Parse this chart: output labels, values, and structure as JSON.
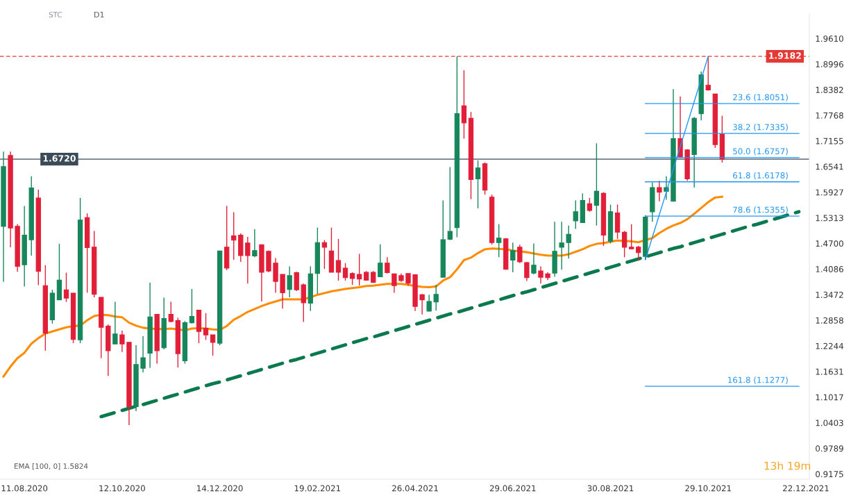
{
  "chart_data": {
    "type": "candlestick",
    "categories": [
      null,
      null,
      null,
      "11.08.2020",
      null,
      null,
      null,
      null,
      null,
      null,
      null,
      null,
      null,
      null,
      null,
      null,
      null,
      "12.10.2020",
      null,
      null,
      null,
      null,
      null,
      null,
      null,
      null,
      null,
      null,
      null,
      null,
      null,
      "14.12.2020",
      null,
      null,
      null,
      null,
      null,
      null,
      null,
      null,
      null,
      null,
      null,
      null,
      null,
      "19.02.2021",
      null,
      null,
      null,
      null,
      null,
      null,
      null,
      null,
      null,
      null,
      null,
      null,
      null,
      "26.04.2021",
      null,
      null,
      null,
      null,
      null,
      null,
      null,
      null,
      null,
      null,
      null,
      null,
      null,
      "29.06.2021",
      null,
      null,
      null,
      null,
      null,
      null,
      null,
      null,
      null,
      null,
      null,
      null,
      null,
      "30.08.2021",
      null,
      null,
      null,
      null,
      null,
      null,
      null,
      null,
      null,
      null,
      null,
      null,
      null,
      "29.10.2021",
      null,
      null,
      null,
      null,
      null,
      null,
      null,
      null,
      null,
      null,
      null,
      null,
      null,
      "22.12.2021"
    ],
    "colors": [
      "#17865b",
      "#e21f38",
      "#e21f38",
      "#17865b",
      "#17865b",
      "#e21f38",
      "#e21f38",
      "#17865b",
      "#17865b",
      "#e21f38",
      "#e21f38",
      "#17865b",
      "#e21f38",
      "#e21f38",
      "#e21f38",
      "#e21f38",
      "#17865b",
      "#e21f38",
      "#e21f38",
      "#17865b",
      "#17865b",
      "#17865b",
      "#e21f38",
      "#17865b",
      "#e21f38",
      "#e21f38",
      "#17865b",
      "#17865b",
      "#e21f38",
      "#e21f38",
      "#e21f38",
      "#17865b",
      "#e21f38",
      "#e21f38",
      "#e21f38",
      "#e21f38",
      "#17865b",
      "#e21f38",
      "#e21f38",
      "#e21f38",
      "#e21f38",
      "#17865b",
      "#e21f38",
      "#e21f38",
      "#17865b",
      "#17865b",
      "#e21f38",
      "#e21f38",
      "#e21f38",
      "#e21f38",
      "#e21f38",
      "#e21f38",
      "#e21f38",
      "#e21f38",
      "#17865b",
      "#e21f38",
      "#e21f38",
      "#e21f38",
      "#e21f38",
      "#e21f38",
      "#e21f38",
      "#17865b",
      "#17865b",
      "#17865b",
      "#17865b",
      "#17865b",
      "#e21f38",
      "#e21f38",
      "#17865b",
      "#e21f38",
      "#e21f38",
      "#17865b",
      "#e21f38",
      "#17865b",
      "#e21f38",
      "#e21f38",
      "#17865b",
      "#e21f38",
      "#e21f38",
      "#17865b",
      "#17865b",
      "#17865b",
      "#17865b",
      "#17865b",
      "#e21f38",
      "#17865b",
      "#e21f38",
      "#17865b",
      "#e21f38",
      "#e21f38",
      "#e21f38",
      "#e21f38",
      "#17865b",
      "#17865b",
      "#e21f38",
      "#17865b",
      "#17865b",
      "#e21f38",
      "#e21f38",
      "#17865b",
      "#17865b",
      "#e21f38",
      "#e21f38",
      "#e21f38",
      null,
      null,
      null,
      null,
      null,
      null,
      null,
      null,
      null,
      null,
      null,
      null
    ],
    "ohlc": [
      [
        1.511,
        1.69,
        1.378,
        1.654
      ],
      [
        1.681,
        1.69,
        1.461,
        1.507
      ],
      [
        1.511,
        1.516,
        1.402,
        1.415
      ],
      [
        1.419,
        1.56,
        1.367,
        1.49
      ],
      [
        1.479,
        1.631,
        1.441,
        1.603
      ],
      [
        1.579,
        1.599,
        1.37,
        1.403
      ],
      [
        1.369,
        1.418,
        1.213,
        1.255
      ],
      [
        1.287,
        1.359,
        1.278,
        1.351
      ],
      [
        1.335,
        1.469,
        1.335,
        1.382
      ],
      [
        1.359,
        1.4,
        1.33,
        1.339
      ],
      [
        1.351,
        1.351,
        1.231,
        1.24
      ],
      [
        1.239,
        1.579,
        1.231,
        1.526
      ],
      [
        1.532,
        1.542,
        1.352,
        1.46
      ],
      [
        1.461,
        1.5,
        1.341,
        1.348
      ],
      [
        1.341,
        1.341,
        1.195,
        1.269
      ],
      [
        1.272,
        1.276,
        1.153,
        1.213
      ],
      [
        1.229,
        1.33,
        1.229,
        1.253
      ],
      [
        1.251,
        1.261,
        1.21,
        1.229
      ],
      [
        1.233,
        1.233,
        1.035,
        1.079
      ],
      [
        1.079,
        1.226,
        1.068,
        1.18
      ],
      [
        1.171,
        1.248,
        1.161,
        1.196
      ],
      [
        1.207,
        1.376,
        1.172,
        1.294
      ],
      [
        1.3,
        1.3,
        1.182,
        1.213
      ],
      [
        1.22,
        1.34,
        1.216,
        1.29
      ],
      [
        1.3,
        1.33,
        1.281,
        1.283
      ],
      [
        1.285,
        1.292,
        1.173,
        1.206
      ],
      [
        1.189,
        1.284,
        1.182,
        1.28
      ],
      [
        1.28,
        1.361,
        1.278,
        1.295
      ],
      [
        1.31,
        1.31,
        1.231,
        1.259
      ],
      [
        1.267,
        1.303,
        1.239,
        1.251
      ],
      [
        1.251,
        1.251,
        1.201,
        1.233
      ],
      [
        1.231,
        1.452,
        1.226,
        1.452
      ],
      [
        1.461,
        1.56,
        1.406,
        1.411
      ],
      [
        1.488,
        1.545,
        1.431,
        1.478
      ],
      [
        1.49,
        1.494,
        1.426,
        1.441
      ],
      [
        1.471,
        1.486,
        1.374,
        1.441
      ],
      [
        1.44,
        1.504,
        1.437,
        1.453
      ],
      [
        1.467,
        1.467,
        1.331,
        1.401
      ],
      [
        1.451,
        1.453,
        1.401,
        1.404
      ],
      [
        1.423,
        1.435,
        1.352,
        1.379
      ],
      [
        1.396,
        1.396,
        1.314,
        1.352
      ],
      [
        1.36,
        1.415,
        1.341,
        1.393
      ],
      [
        1.4,
        1.402,
        1.356,
        1.359
      ],
      [
        1.371,
        1.374,
        1.282,
        1.328
      ],
      [
        1.327,
        1.415,
        1.308,
        1.397
      ],
      [
        1.398,
        1.508,
        1.349,
        1.472
      ],
      [
        1.472,
        1.478,
        1.409,
        1.461
      ],
      [
        1.452,
        1.508,
        1.401,
        1.401
      ],
      [
        1.429,
        1.481,
        1.381,
        1.401
      ],
      [
        1.411,
        1.423,
        1.381,
        1.388
      ],
      [
        1.398,
        1.401,
        1.371,
        1.386
      ],
      [
        1.396,
        1.445,
        1.369,
        1.385
      ],
      [
        1.401,
        1.404,
        1.381,
        1.382
      ],
      [
        1.401,
        1.404,
        1.375,
        1.377
      ],
      [
        1.39,
        1.468,
        1.39,
        1.423
      ],
      [
        1.423,
        1.437,
        1.398,
        1.4
      ],
      [
        1.397,
        1.398,
        1.352,
        1.369
      ],
      [
        1.393,
        1.398,
        1.378,
        1.381
      ],
      [
        1.398,
        1.398,
        1.369,
        1.375
      ],
      [
        1.395,
        1.396,
        1.308,
        1.319
      ],
      [
        1.347,
        1.349,
        1.3,
        1.335
      ],
      [
        1.308,
        1.347,
        1.307,
        1.331
      ],
      [
        1.33,
        1.371,
        1.309,
        1.348
      ],
      [
        1.389,
        1.573,
        1.389,
        1.479
      ],
      [
        1.48,
        1.653,
        1.478,
        1.499
      ],
      [
        1.508,
        1.918,
        1.485,
        1.781
      ],
      [
        1.8,
        1.885,
        1.721,
        1.759
      ],
      [
        1.77,
        1.785,
        1.576,
        1.623
      ],
      [
        1.625,
        1.669,
        1.554,
        1.651
      ],
      [
        1.661,
        1.664,
        1.587,
        1.598
      ],
      [
        1.581,
        1.587,
        1.467,
        1.472
      ],
      [
        1.472,
        1.516,
        1.437,
        1.483
      ],
      [
        1.481,
        1.483,
        1.407,
        1.408
      ],
      [
        1.43,
        1.472,
        1.401,
        1.453
      ],
      [
        1.461,
        1.467,
        1.423,
        1.426
      ],
      [
        1.424,
        1.426,
        1.38,
        1.388
      ],
      [
        1.399,
        1.47,
        1.396,
        1.418
      ],
      [
        1.404,
        1.415,
        1.374,
        1.389
      ],
      [
        1.397,
        1.401,
        1.382,
        1.388
      ],
      [
        1.399,
        1.522,
        1.39,
        1.451
      ],
      [
        1.461,
        1.522,
        1.407,
        1.471
      ],
      [
        1.472,
        1.513,
        1.434,
        1.492
      ],
      [
        1.524,
        1.573,
        1.505,
        1.546
      ],
      [
        1.52,
        1.59,
        1.519,
        1.573
      ],
      [
        1.565,
        1.579,
        1.546,
        1.549
      ],
      [
        1.561,
        1.71,
        1.513,
        1.595
      ],
      [
        1.59,
        1.593,
        1.464,
        1.49
      ],
      [
        1.475,
        1.563,
        1.47,
        1.546
      ],
      [
        1.543,
        1.563,
        1.481,
        1.497
      ],
      [
        1.497,
        1.5,
        1.437,
        1.461
      ],
      [
        1.461,
        1.516,
        1.456,
        1.457
      ],
      [
        1.461,
        1.464,
        1.429,
        1.448
      ],
      [
        1.439,
        1.538,
        1.431,
        1.533
      ],
      [
        1.546,
        1.616,
        1.522,
        1.604
      ],
      [
        1.604,
        1.62,
        1.571,
        1.593
      ],
      [
        1.595,
        1.631,
        1.575,
        1.604
      ],
      [
        1.571,
        1.84,
        1.571,
        1.721
      ],
      [
        1.721,
        1.822,
        1.675,
        1.677
      ],
      [
        1.694,
        1.696,
        1.62,
        1.625
      ],
      [
        1.683,
        1.773,
        1.604,
        1.77
      ],
      [
        1.781,
        1.882,
        1.765,
        1.874
      ],
      [
        1.849,
        1.918,
        1.836,
        1.838
      ],
      [
        1.828,
        1.828,
        1.699,
        1.707
      ],
      [
        1.732,
        1.776,
        1.664,
        1.672
      ],
      null,
      null,
      null,
      null,
      null,
      null,
      null,
      null,
      null,
      null,
      null,
      null
    ],
    "series": [
      {
        "type": "line",
        "color": "#ff8c00",
        "line_style": "solid",
        "values": [
          1.151,
          1.175,
          1.195,
          1.208,
          1.23,
          1.243,
          1.254,
          1.259,
          1.264,
          1.269,
          1.272,
          1.273,
          1.286,
          1.296,
          1.299,
          1.298,
          1.295,
          1.293,
          1.28,
          1.273,
          1.268,
          1.266,
          1.265,
          1.265,
          1.266,
          1.264,
          1.262,
          1.266,
          1.267,
          1.266,
          1.264,
          1.263,
          1.272,
          1.287,
          1.296,
          1.306,
          1.313,
          1.32,
          1.326,
          1.331,
          1.336,
          1.336,
          1.336,
          1.336,
          1.341,
          1.347,
          1.351,
          1.355,
          1.358,
          1.361,
          1.363,
          1.365,
          1.368,
          1.369,
          1.371,
          1.373,
          1.373,
          1.373,
          1.371,
          1.368,
          1.366,
          1.365,
          1.367,
          1.381,
          1.389,
          1.408,
          1.43,
          1.436,
          1.447,
          1.456,
          1.458,
          1.457,
          1.456,
          1.453,
          1.451,
          1.449,
          1.446,
          1.443,
          1.441,
          1.441,
          1.441,
          1.444,
          1.45,
          1.456,
          1.464,
          1.469,
          1.471,
          1.474,
          1.477,
          1.476,
          1.475,
          1.473,
          1.478,
          1.483,
          1.495,
          1.505,
          1.513,
          1.519,
          1.528,
          1.541,
          1.555,
          1.569,
          1.58,
          1.582,
          null,
          null,
          null,
          null,
          null,
          null,
          null,
          null,
          null,
          null,
          null,
          null
        ]
      },
      {
        "type": "line",
        "color": "#0a7a4e",
        "line_style": "dashed",
        "values": [
          null,
          null,
          null,
          null,
          null,
          null,
          null,
          null,
          null,
          null,
          null,
          null,
          null,
          null,
          1.055,
          1.06,
          1.065,
          1.07,
          1.075,
          1.08,
          1.084,
          1.089,
          1.094,
          1.099,
          1.104,
          1.109,
          1.114,
          1.119,
          1.124,
          1.129,
          1.134,
          1.138,
          1.143,
          1.148,
          1.153,
          1.158,
          1.163,
          1.168,
          1.173,
          1.178,
          1.183,
          1.188,
          1.192,
          1.197,
          1.202,
          1.207,
          1.212,
          1.217,
          1.222,
          1.227,
          1.232,
          1.237,
          1.242,
          1.246,
          1.251,
          1.256,
          1.261,
          1.266,
          1.271,
          1.276,
          1.281,
          1.286,
          1.291,
          1.296,
          1.301,
          1.305,
          1.31,
          1.315,
          1.32,
          1.325,
          1.33,
          1.335,
          1.34,
          1.345,
          1.35,
          1.354,
          1.359,
          1.364,
          1.369,
          1.374,
          1.379,
          1.384,
          1.389,
          1.394,
          1.399,
          1.404,
          1.408,
          1.413,
          1.418,
          1.423,
          1.428,
          1.433,
          1.438,
          1.443,
          1.448,
          1.453,
          1.458,
          1.462,
          1.467,
          1.472,
          1.477,
          1.482,
          1.487,
          1.492,
          1.497,
          1.502,
          1.507,
          1.512,
          1.516,
          1.521,
          1.526,
          1.531,
          1.536,
          1.541,
          1.546,
          null
        ]
      },
      {
        "type": "line",
        "color": "#2196f3",
        "line_style": "solid",
        "values": [
          null,
          null,
          null,
          null,
          null,
          null,
          null,
          null,
          null,
          null,
          null,
          null,
          null,
          null,
          null,
          null,
          null,
          null,
          null,
          null,
          null,
          null,
          null,
          null,
          null,
          null,
          null,
          null,
          null,
          null,
          null,
          null,
          null,
          null,
          null,
          null,
          null,
          null,
          null,
          null,
          null,
          null,
          null,
          null,
          null,
          null,
          null,
          null,
          null,
          null,
          null,
          null,
          null,
          null,
          null,
          null,
          null,
          null,
          null,
          null,
          null,
          null,
          null,
          null,
          null,
          null,
          null,
          null,
          null,
          null,
          null,
          null,
          null,
          null,
          null,
          null,
          null,
          null,
          null,
          null,
          null,
          null,
          null,
          null,
          null,
          null,
          null,
          null,
          null,
          null,
          null,
          null,
          1.431,
          1.485,
          1.539,
          1.593,
          1.648,
          1.702,
          1.756,
          1.81,
          1.864,
          1.918,
          null,
          null,
          null,
          null,
          null,
          null,
          null,
          null,
          null,
          null,
          null,
          null,
          null,
          null
        ]
      },
      {
        "type": "line",
        "name": "23.6 (1.8051)",
        "color": "#2196f3",
        "line_style": "solid",
        "values": [
          null,
          null,
          null,
          null,
          null,
          null,
          null,
          null,
          null,
          null,
          null,
          null,
          null,
          null,
          null,
          null,
          null,
          null,
          null,
          null,
          null,
          null,
          null,
          null,
          null,
          null,
          null,
          null,
          null,
          null,
          null,
          null,
          null,
          null,
          null,
          null,
          null,
          null,
          null,
          null,
          null,
          null,
          null,
          null,
          null,
          null,
          null,
          null,
          null,
          null,
          null,
          null,
          null,
          null,
          null,
          null,
          null,
          null,
          null,
          null,
          null,
          null,
          null,
          null,
          null,
          null,
          null,
          null,
          null,
          null,
          null,
          null,
          null,
          null,
          null,
          null,
          null,
          null,
          null,
          null,
          null,
          null,
          null,
          null,
          null,
          null,
          null,
          null,
          null,
          null,
          null,
          null,
          1.8051,
          1.8051,
          1.8051,
          1.8051,
          1.8051,
          1.8051,
          1.8051,
          1.8051,
          1.8051,
          1.8051,
          1.8051,
          1.8051,
          1.8051,
          1.8051,
          1.8051,
          1.8051,
          1.8051,
          1.8051,
          1.8051,
          1.8051,
          1.8051,
          1.8051,
          1.8051,
          null
        ]
      },
      {
        "type": "line",
        "name": "38.2 (1.7335)",
        "color": "#2196f3",
        "line_style": "solid",
        "values": [
          null,
          null,
          null,
          null,
          null,
          null,
          null,
          null,
          null,
          null,
          null,
          null,
          null,
          null,
          null,
          null,
          null,
          null,
          null,
          null,
          null,
          null,
          null,
          null,
          null,
          null,
          null,
          null,
          null,
          null,
          null,
          null,
          null,
          null,
          null,
          null,
          null,
          null,
          null,
          null,
          null,
          null,
          null,
          null,
          null,
          null,
          null,
          null,
          null,
          null,
          null,
          null,
          null,
          null,
          null,
          null,
          null,
          null,
          null,
          null,
          null,
          null,
          null,
          null,
          null,
          null,
          null,
          null,
          null,
          null,
          null,
          null,
          null,
          null,
          null,
          null,
          null,
          null,
          null,
          null,
          null,
          null,
          null,
          null,
          null,
          null,
          null,
          null,
          null,
          null,
          null,
          null,
          1.7335,
          1.7335,
          1.7335,
          1.7335,
          1.7335,
          1.7335,
          1.7335,
          1.7335,
          1.7335,
          1.7335,
          1.7335,
          1.7335,
          1.7335,
          1.7335,
          1.7335,
          1.7335,
          1.7335,
          1.7335,
          1.7335,
          1.7335,
          1.7335,
          1.7335,
          1.7335,
          null
        ]
      },
      {
        "type": "line",
        "name": "50.0 (1.6757)",
        "color": "#2196f3",
        "line_style": "solid",
        "values": [
          null,
          null,
          null,
          null,
          null,
          null,
          null,
          null,
          null,
          null,
          null,
          null,
          null,
          null,
          null,
          null,
          null,
          null,
          null,
          null,
          null,
          null,
          null,
          null,
          null,
          null,
          null,
          null,
          null,
          null,
          null,
          null,
          null,
          null,
          null,
          null,
          null,
          null,
          null,
          null,
          null,
          null,
          null,
          null,
          null,
          null,
          null,
          null,
          null,
          null,
          null,
          null,
          null,
          null,
          null,
          null,
          null,
          null,
          null,
          null,
          null,
          null,
          null,
          null,
          null,
          null,
          null,
          null,
          null,
          null,
          null,
          null,
          null,
          null,
          null,
          null,
          null,
          null,
          null,
          null,
          null,
          null,
          null,
          null,
          null,
          null,
          null,
          null,
          null,
          null,
          null,
          null,
          1.6757,
          1.6757,
          1.6757,
          1.6757,
          1.6757,
          1.6757,
          1.6757,
          1.6757,
          1.6757,
          1.6757,
          1.6757,
          1.6757,
          1.6757,
          1.6757,
          1.6757,
          1.6757,
          1.6757,
          1.6757,
          1.6757,
          1.6757,
          1.6757,
          1.6757,
          1.6757,
          null
        ]
      },
      {
        "type": "line",
        "name": "61.8 (1.6178)",
        "color": "#2196f3",
        "line_style": "solid",
        "values": [
          null,
          null,
          null,
          null,
          null,
          null,
          null,
          null,
          null,
          null,
          null,
          null,
          null,
          null,
          null,
          null,
          null,
          null,
          null,
          null,
          null,
          null,
          null,
          null,
          null,
          null,
          null,
          null,
          null,
          null,
          null,
          null,
          null,
          null,
          null,
          null,
          null,
          null,
          null,
          null,
          null,
          null,
          null,
          null,
          null,
          null,
          null,
          null,
          null,
          null,
          null,
          null,
          null,
          null,
          null,
          null,
          null,
          null,
          null,
          null,
          null,
          null,
          null,
          null,
          null,
          null,
          null,
          null,
          null,
          null,
          null,
          null,
          null,
          null,
          null,
          null,
          null,
          null,
          null,
          null,
          null,
          null,
          null,
          null,
          null,
          null,
          null,
          null,
          null,
          null,
          null,
          null,
          1.6178,
          1.6178,
          1.6178,
          1.6178,
          1.6178,
          1.6178,
          1.6178,
          1.6178,
          1.6178,
          1.6178,
          1.6178,
          1.6178,
          1.6178,
          1.6178,
          1.6178,
          1.6178,
          1.6178,
          1.6178,
          1.6178,
          1.6178,
          1.6178,
          1.6178,
          1.6178,
          null
        ]
      },
      {
        "type": "line",
        "name": "78.6 (1.5355)",
        "color": "#2196f3",
        "line_style": "solid",
        "values": [
          null,
          null,
          null,
          null,
          null,
          null,
          null,
          null,
          null,
          null,
          null,
          null,
          null,
          null,
          null,
          null,
          null,
          null,
          null,
          null,
          null,
          null,
          null,
          null,
          null,
          null,
          null,
          null,
          null,
          null,
          null,
          null,
          null,
          null,
          null,
          null,
          null,
          null,
          null,
          null,
          null,
          null,
          null,
          null,
          null,
          null,
          null,
          null,
          null,
          null,
          null,
          null,
          null,
          null,
          null,
          null,
          null,
          null,
          null,
          null,
          null,
          null,
          null,
          null,
          null,
          null,
          null,
          null,
          null,
          null,
          null,
          null,
          null,
          null,
          null,
          null,
          null,
          null,
          null,
          null,
          null,
          null,
          null,
          null,
          null,
          null,
          null,
          null,
          null,
          null,
          null,
          null,
          1.5355,
          1.5355,
          1.5355,
          1.5355,
          1.5355,
          1.5355,
          1.5355,
          1.5355,
          1.5355,
          1.5355,
          1.5355,
          1.5355,
          1.5355,
          1.5355,
          1.5355,
          1.5355,
          1.5355,
          1.5355,
          1.5355,
          1.5355,
          1.5355,
          1.5355,
          1.5355,
          null
        ]
      },
      {
        "type": "line",
        "name": "161.8 (1.1277)",
        "color": "#2196f3",
        "line_style": "solid",
        "values": [
          null,
          null,
          null,
          null,
          null,
          null,
          null,
          null,
          null,
          null,
          null,
          null,
          null,
          null,
          null,
          null,
          null,
          null,
          null,
          null,
          null,
          null,
          null,
          null,
          null,
          null,
          null,
          null,
          null,
          null,
          null,
          null,
          null,
          null,
          null,
          null,
          null,
          null,
          null,
          null,
          null,
          null,
          null,
          null,
          null,
          null,
          null,
          null,
          null,
          null,
          null,
          null,
          null,
          null,
          null,
          null,
          null,
          null,
          null,
          null,
          null,
          null,
          null,
          null,
          null,
          null,
          null,
          null,
          null,
          null,
          null,
          null,
          null,
          null,
          null,
          null,
          null,
          null,
          null,
          null,
          null,
          null,
          null,
          null,
          null,
          null,
          null,
          null,
          null,
          null,
          null,
          null,
          1.1277,
          1.1277,
          1.1277,
          1.1277,
          1.1277,
          1.1277,
          1.1277,
          1.1277,
          1.1277,
          1.1277,
          1.1277,
          1.1277,
          1.1277,
          1.1277,
          1.1277,
          1.1277,
          1.1277,
          1.1277,
          1.1277,
          1.1277,
          1.1277,
          1.1277,
          1.1277,
          null
        ]
      }
    ],
    "ref_lines": [
      {
        "axis": "y",
        "value": 1.9182,
        "label": "1.9182",
        "color": "#e53935",
        "line_style": "dashed"
      },
      {
        "axis": "y",
        "value": 1.672,
        "label": "1.6720",
        "color": "#3b4a57",
        "line_style": "solid"
      }
    ],
    "ylim": [
      0.905,
      2.02
    ],
    "yticks": [
      {
        "value": 1.961,
        "label": "1.9610"
      },
      1.8996,
      1.8382,
      1.7768,
      1.7155,
      1.6541,
      1.5927,
      1.5313,
      {
        "value": 1.47,
        "label": "1.4700"
      },
      1.4086,
      1.3472,
      1.2858,
      1.2244,
      1.1631,
      1.1017,
      1.0403,
      0.9789,
      0.9175
    ],
    "annotations": [
      "STC",
      "D1",
      "EMA [100, 0] 1.5824",
      "13h 19m"
    ]
  }
}
